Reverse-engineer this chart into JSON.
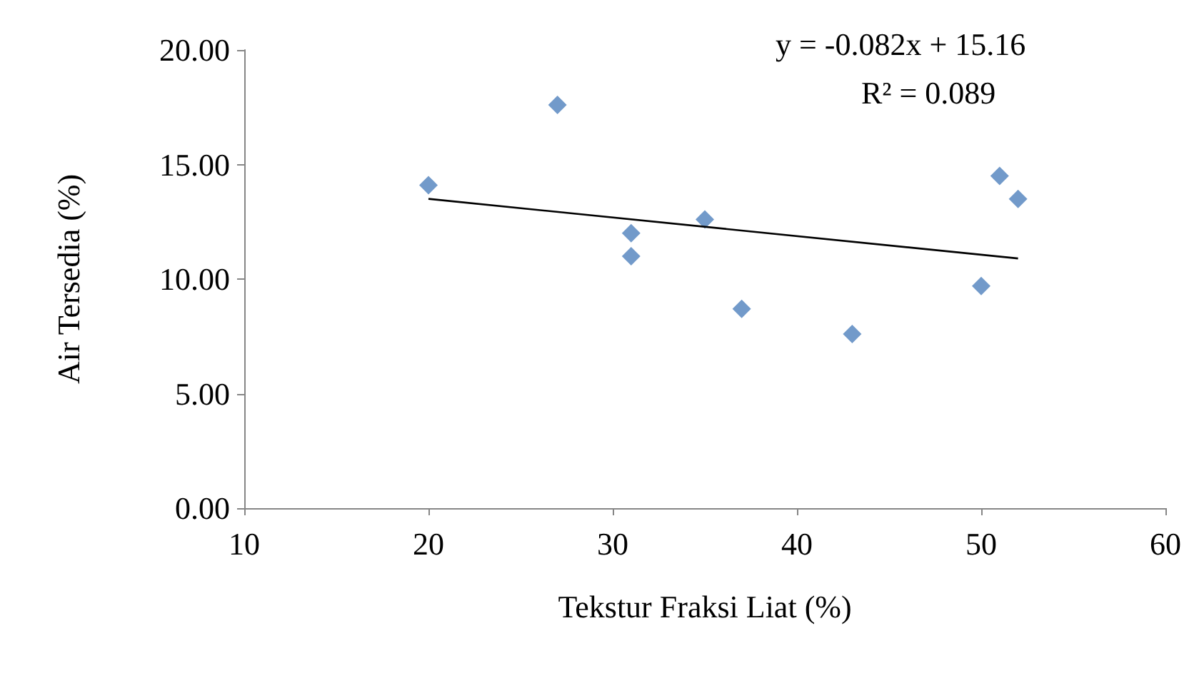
{
  "chart_data": {
    "type": "scatter",
    "xlabel": "Tekstur Fraksi Liat (%)",
    "ylabel": "Air Tersedia (%)",
    "annotations": [
      "y = -0.082x + 15.16",
      "R² = 0.089"
    ],
    "xlim": [
      10,
      60
    ],
    "xticks": [
      10,
      20,
      30,
      40,
      50,
      60
    ],
    "ylim": [
      0,
      20
    ],
    "yticks": [
      {
        "value": 0,
        "label": "0.00"
      },
      {
        "value": 5,
        "label": "5.00"
      },
      {
        "value": 10,
        "label": "10.00"
      },
      {
        "value": 15,
        "label": "15.00"
      },
      {
        "value": 20,
        "label": "20.00"
      }
    ],
    "grid": false,
    "marker": "diamond",
    "series": [
      {
        "color": "#4f81bd",
        "x": [
          20,
          27,
          31,
          31,
          35,
          37,
          43,
          50,
          51,
          52
        ],
        "values": [
          14.1,
          17.6,
          12.0,
          11.0,
          12.6,
          8.7,
          7.6,
          9.7,
          14.5,
          13.5
        ]
      },
      {
        "type": "line",
        "color": "#000000",
        "marker": "none",
        "line_style": "solid",
        "x": [
          20,
          52
        ],
        "values": [
          13.5,
          10.9
        ]
      }
    ]
  }
}
